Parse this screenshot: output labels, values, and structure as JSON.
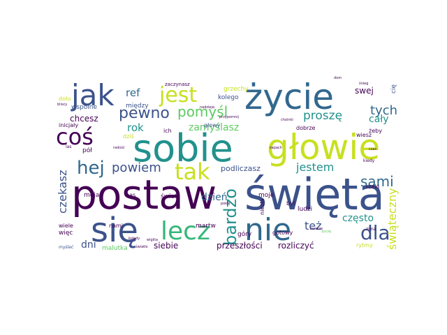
{
  "palette": {
    "background": "#ffffff",
    "dark_purple": "#440154",
    "indigo": "#3b528b",
    "blue": "#31688e",
    "teal": "#21918c",
    "green": "#35b779",
    "light_green": "#5ec962",
    "lime": "#90d743",
    "yellow": "#fde725",
    "olive_yellow": "#c8e020"
  },
  "words": [
    "postaw",
    "święta",
    "sobie",
    "głowie",
    "życie",
    "się",
    "nie",
    "lecz",
    "jak",
    "coś",
    "jest",
    "tak",
    "hej",
    "pewno",
    "pomyśl",
    "dla",
    "sami",
    "bardzo",
    "powiem",
    "jestem",
    "proszę",
    "tych",
    "też",
    "często",
    "czekasz",
    "świąteczny",
    "zamyślasz",
    "dzień",
    "rok",
    "ref",
    "swej",
    "cały",
    "dni",
    "przeszłości",
    "rozliczyć",
    "podliczasz",
    "siebie",
    "chcesz",
    "wspólne",
    "między",
    "kolego",
    "grzechy",
    "zaczynasz",
    "dołu",
    "inicjały",
    "pół",
    "głowy",
    "dziś",
    "ich",
    "moja",
    "nami",
    "więc",
    "wiele",
    "malutka",
    "martw",
    "góry",
    "moje",
    "był",
    "ludzi",
    "niezła",
    "dobrze",
    "gotowy",
    "wiesz",
    "żeby",
    "rzeki",
    "rytmy",
    "świat",
    "nas",
    "las",
    "zima",
    "kiedy",
    "cię",
    "myśleć",
    "przypomnij",
    "zapach",
    "choinki",
    "zawsze",
    "życzę",
    "kolędy",
    "wigilia",
    "śnieg",
    "bliscy",
    "nadzieja",
    "radość",
    "pokój",
    "dom",
    "światło",
    "czas"
  ]
}
